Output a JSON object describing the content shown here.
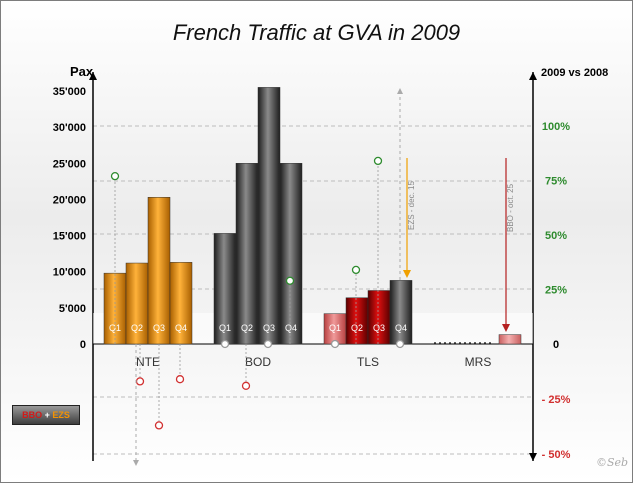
{
  "title": "French Traffic at GVA in 2009",
  "watermark": "©Seb",
  "legend_badge": {
    "bbo": "BBO",
    "plus": "+",
    "ezs": "EZS"
  },
  "colors": {
    "nte": "#f39200",
    "bod": "#4a4a4a",
    "tls_bbo": "#b00000",
    "tls_ezs": "#e35a5a",
    "mrs": "#e88888",
    "pos": "#2e8b2e",
    "neg": "#d13030",
    "ezs_arrow": "#f0a000",
    "bbo_arrow": "#b52020"
  },
  "chart_data": {
    "type": "bar",
    "title": "French Traffic at GVA in 2009",
    "ylabel": "Pax",
    "y2label": "2009 vs 2008",
    "ylim": [
      0,
      35000
    ],
    "y2lim": [
      -50,
      100
    ],
    "yticks": [
      "35'000",
      "30'000",
      "25'000",
      "20'000",
      "15'000",
      "10'000",
      "5'000",
      "0"
    ],
    "y2ticks": [
      "100%",
      "75%",
      "50%",
      "25%",
      "0",
      "- 25%",
      "- 50%"
    ],
    "categories": [
      "NTE",
      "BOD",
      "TLS",
      "MRS"
    ],
    "quarters": [
      "Q1",
      "Q2",
      "Q3",
      "Q4"
    ],
    "grid": true,
    "series": [
      {
        "cat": "NTE",
        "color": "nte",
        "values": [
          9800,
          11200,
          20300,
          11300
        ],
        "pct": [
          77,
          -17,
          -37,
          -16
        ]
      },
      {
        "cat": "BOD",
        "color": "bod",
        "values": [
          15300,
          25000,
          35500,
          25000
        ],
        "pct": [
          0,
          -19,
          0,
          29
        ]
      },
      {
        "cat": "TLS",
        "color": "tls",
        "values": [
          4200,
          6400,
          7400,
          8800
        ],
        "pct": [
          0,
          34,
          84,
          0
        ]
      },
      {
        "cat": "MRS",
        "color": "mrs",
        "values": [
          0,
          0,
          0,
          1300
        ],
        "pct": []
      }
    ],
    "annotations": [
      {
        "text": "EZS - dec. 15",
        "cat": "TLS"
      },
      {
        "text": "BBO - oct. 25",
        "cat": "MRS"
      }
    ]
  }
}
